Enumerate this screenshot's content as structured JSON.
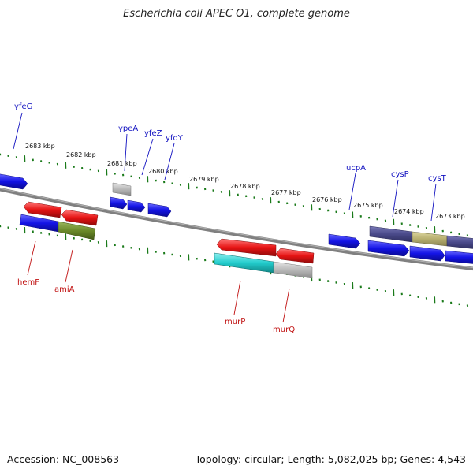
{
  "title": "Escherichia coli APEC O1, complete genome",
  "footer": {
    "accession": "Accession: NC_008563",
    "summary": "Topology: circular; Length: 5,082,025 bp; Genes: 4,543"
  },
  "colors": {
    "forward_gene": "#1414e6",
    "reverse_gene": "#e61414",
    "backbone": "#808080",
    "ticks": "#1a7a1a",
    "cyan_gene": "#22cccc",
    "olive_gene": "#6b8a2a",
    "grey_gene": "#b8b8b8",
    "slate_gene": "#4a4a8a",
    "khaki_gene": "#b8b070"
  },
  "scale_labels": [
    "2683 kbp",
    "2682 kbp",
    "2681 kbp",
    "2680 kbp",
    "2679 kbp",
    "2678 kbp",
    "2677 kbp",
    "2676 kbp",
    "2675 kbp",
    "2674 kbp",
    "2673 kbp"
  ],
  "forward_genes": [
    "yfeG",
    "ypeA",
    "yfeZ",
    "yfdY",
    "ucpA",
    "cysP",
    "cysT"
  ],
  "reverse_genes": [
    "hemF",
    "amiA",
    "murP",
    "murQ"
  ]
}
